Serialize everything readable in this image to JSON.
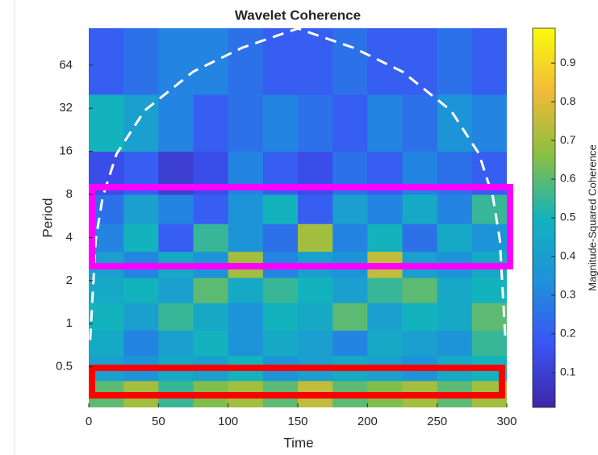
{
  "chart_data": {
    "type": "heatmap",
    "title": "Wavelet Coherence",
    "xlabel": "Time",
    "ylabel": "Period",
    "colorbar_label": "Magnitude-Squared Coherence",
    "xlim": [
      0,
      300
    ],
    "xticks": [
      0,
      50,
      100,
      150,
      200,
      250,
      300
    ],
    "ylim": [
      0.26,
      116
    ],
    "yscale": "log",
    "yticks": [
      0.5,
      1,
      2,
      4,
      8,
      16,
      32,
      64
    ],
    "clim": [
      0.01,
      0.99
    ],
    "cticks": [
      0.1,
      0.2,
      0.3,
      0.4,
      0.5,
      0.6,
      0.7,
      0.8,
      0.9
    ],
    "x_bins": [
      0,
      25,
      50,
      75,
      100,
      125,
      150,
      175,
      200,
      225,
      250,
      275,
      300
    ],
    "y_bins": [
      0.26,
      0.4,
      0.6,
      0.9,
      1.4,
      2.1,
      3.2,
      5,
      8,
      16,
      40,
      116
    ],
    "z": [
      [
        0.6,
        0.7,
        0.55,
        0.65,
        0.7,
        0.6,
        0.75,
        0.6,
        0.65,
        0.7,
        0.6,
        0.7
      ],
      [
        0.4,
        0.35,
        0.45,
        0.4,
        0.5,
        0.35,
        0.4,
        0.45,
        0.4,
        0.35,
        0.45,
        0.5
      ],
      [
        0.45,
        0.3,
        0.4,
        0.5,
        0.35,
        0.45,
        0.4,
        0.3,
        0.45,
        0.4,
        0.35,
        0.55
      ],
      [
        0.5,
        0.4,
        0.55,
        0.45,
        0.35,
        0.5,
        0.45,
        0.6,
        0.4,
        0.5,
        0.45,
        0.6
      ],
      [
        0.45,
        0.5,
        0.4,
        0.6,
        0.45,
        0.55,
        0.5,
        0.4,
        0.55,
        0.6,
        0.45,
        0.5
      ],
      [
        0.4,
        0.3,
        0.45,
        0.35,
        0.7,
        0.3,
        0.4,
        0.35,
        0.75,
        0.4,
        0.35,
        0.45
      ],
      [
        0.3,
        0.5,
        0.2,
        0.55,
        0.35,
        0.25,
        0.7,
        0.3,
        0.5,
        0.25,
        0.45,
        0.35
      ],
      [
        0.25,
        0.4,
        0.3,
        0.2,
        0.35,
        0.5,
        0.2,
        0.4,
        0.3,
        0.45,
        0.3,
        0.55
      ],
      [
        0.15,
        0.2,
        0.1,
        0.15,
        0.3,
        0.2,
        0.15,
        0.25,
        0.2,
        0.3,
        0.25,
        0.2
      ],
      [
        0.5,
        0.4,
        0.3,
        0.2,
        0.25,
        0.3,
        0.25,
        0.2,
        0.3,
        0.25,
        0.35,
        0.3
      ],
      [
        0.2,
        0.25,
        0.3,
        0.3,
        0.25,
        0.2,
        0.2,
        0.25,
        0.2,
        0.2,
        0.25,
        0.2
      ]
    ],
    "coi": {
      "color": "#ffffff",
      "x": [
        1,
        5,
        10,
        20,
        40,
        75,
        110,
        150,
        190,
        225,
        260,
        280,
        290,
        295,
        299
      ],
      "period": [
        0.77,
        3.85,
        7.7,
        15.4,
        30.8,
        57.75,
        84.7,
        115.5,
        84.7,
        57.75,
        30.8,
        15.4,
        7.7,
        3.85,
        0.77
      ]
    }
  }
}
